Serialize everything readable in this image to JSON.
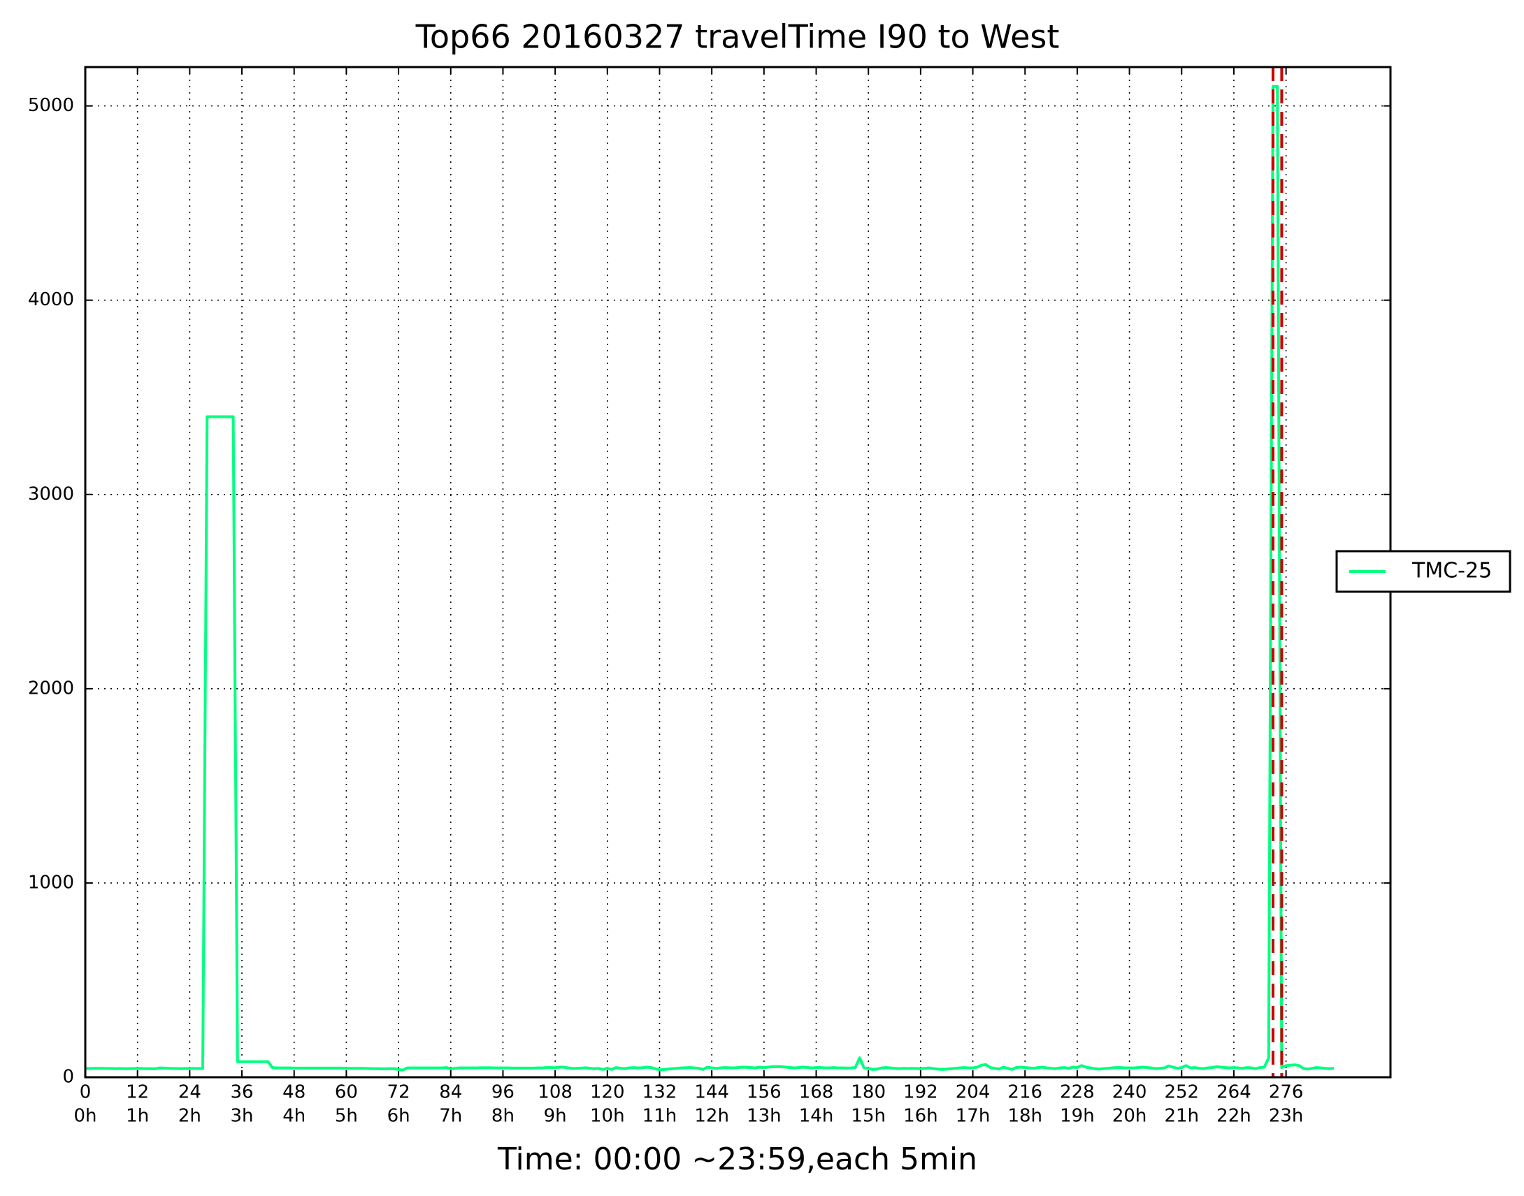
{
  "chart_data": {
    "type": "line",
    "title": "Top66 20160327 travelTime I90 to West",
    "x_label": "Time: 00:00 ~23:59,each 5min",
    "xlim": [
      0,
      300
    ],
    "ylim": [
      0,
      5200
    ],
    "xticks": [
      0,
      12,
      24,
      36,
      48,
      60,
      72,
      84,
      96,
      108,
      120,
      132,
      144,
      156,
      168,
      180,
      192,
      204,
      216,
      228,
      240,
      252,
      264,
      276
    ],
    "xtick_sublabels": [
      "0h",
      "1h",
      "2h",
      "3h",
      "4h",
      "5h",
      "6h",
      "7h",
      "8h",
      "9h",
      "10h",
      "11h",
      "12h",
      "13h",
      "14h",
      "15h",
      "16h",
      "17h",
      "18h",
      "19h",
      "20h",
      "21h",
      "22h",
      "23h"
    ],
    "yticks": [
      0,
      1000,
      2000,
      3000,
      4000,
      5000
    ],
    "grid": true,
    "legend": "right",
    "vlines": [
      273,
      275
    ],
    "vline_color": "#cc0000",
    "series": [
      {
        "name": "TMC-25",
        "color": "#00ff7f",
        "values": [
          45,
          45,
          46,
          46,
          46,
          45,
          45,
          44,
          45,
          44,
          44,
          45,
          45,
          45,
          44,
          44,
          43,
          48,
          47,
          46,
          45,
          45,
          44,
          45,
          45,
          45,
          45,
          45,
          3400,
          3400,
          3400,
          3400,
          3400,
          3400,
          3400,
          80,
          80,
          80,
          80,
          80,
          80,
          80,
          80,
          50,
          48,
          48,
          48,
          48,
          47,
          47,
          47,
          47,
          47,
          47,
          47,
          47,
          47,
          47,
          47,
          47,
          46,
          46,
          46,
          46,
          46,
          45,
          44,
          44,
          43,
          43,
          44,
          44,
          40,
          37,
          48,
          48,
          48,
          48,
          48,
          48,
          48,
          48,
          48,
          50,
          43,
          46,
          48,
          48,
          48,
          48,
          48,
          49,
          49,
          49,
          48,
          48,
          48,
          48,
          47,
          47,
          47,
          47,
          47,
          47,
          48,
          48,
          50,
          50,
          49,
          52,
          52,
          48,
          45,
          46,
          47,
          49,
          46,
          44,
          45,
          40,
          46,
          40,
          50,
          46,
          44,
          48,
          50,
          48,
          49,
          52,
          50,
          44,
          38,
          40,
          42,
          44,
          46,
          48,
          49,
          50,
          48,
          46,
          40,
          52,
          48,
          46,
          48,
          50,
          49,
          48,
          50,
          52,
          51,
          50,
          48,
          52,
          50,
          52,
          54,
          55,
          54,
          52,
          50,
          48,
          50,
          52,
          50,
          48,
          50,
          50,
          48,
          48,
          50,
          48,
          48,
          47,
          48,
          50,
          100,
          48,
          45,
          40,
          42,
          48,
          50,
          48,
          46,
          44,
          46,
          45,
          46,
          45,
          44,
          46,
          48,
          44,
          42,
          40,
          42,
          44,
          46,
          48,
          50,
          48,
          48,
          52,
          62,
          65,
          50,
          46,
          42,
          52,
          46,
          40,
          50,
          52,
          50,
          48,
          46,
          50,
          52,
          48,
          46,
          44,
          48,
          50,
          46,
          52,
          50,
          60,
          52,
          48,
          44,
          42,
          44,
          46,
          48,
          50,
          50,
          48,
          48,
          48,
          50,
          52,
          50,
          48,
          44,
          46,
          48,
          58,
          52,
          46,
          50,
          60,
          48,
          50,
          46,
          44,
          48,
          50,
          54,
          52,
          50,
          48,
          50,
          48,
          46,
          50,
          48,
          44,
          50,
          52,
          100,
          5100,
          5100,
          50,
          60,
          62,
          64,
          60,
          45,
          42,
          46,
          50,
          48,
          46,
          44,
          46
        ]
      }
    ]
  }
}
